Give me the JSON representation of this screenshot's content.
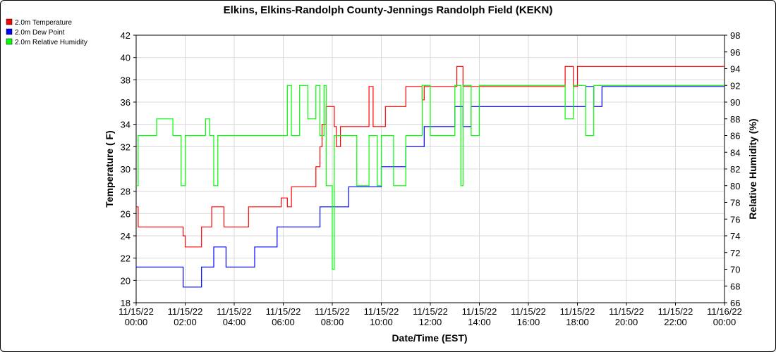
{
  "chart_data": {
    "type": "line",
    "title": "Elkins, Elkins-Randolph County-Jennings Randolph Field (KEKN)",
    "xlabel": "Date/Time (EST)",
    "ylabel_left": "Temperature ( F)",
    "ylabel_right": "Relative Humidity (%)",
    "x_ticks": [
      {
        "date": "11/15/22",
        "time": "00:00"
      },
      {
        "date": "11/15/22",
        "time": "02:00"
      },
      {
        "date": "11/15/22",
        "time": "04:00"
      },
      {
        "date": "11/15/22",
        "time": "06:00"
      },
      {
        "date": "11/15/22",
        "time": "08:00"
      },
      {
        "date": "11/15/22",
        "time": "10:00"
      },
      {
        "date": "11/15/22",
        "time": "12:00"
      },
      {
        "date": "11/15/22",
        "time": "14:00"
      },
      {
        "date": "11/15/22",
        "time": "16:00"
      },
      {
        "date": "11/15/22",
        "time": "18:00"
      },
      {
        "date": "11/15/22",
        "time": "20:00"
      },
      {
        "date": "11/15/22",
        "time": "22:00"
      },
      {
        "date": "11/16/22",
        "time": "00:00"
      }
    ],
    "xlim": [
      "11/15/22 00:00",
      "11/16/22 00:00"
    ],
    "ylim_left": [
      18,
      42
    ],
    "y_ticks_left": [
      18,
      20,
      22,
      24,
      26,
      28,
      30,
      32,
      34,
      36,
      38,
      40,
      42
    ],
    "ylim_right": [
      66,
      98
    ],
    "y_ticks_right": [
      66,
      68,
      70,
      72,
      74,
      76,
      78,
      80,
      82,
      84,
      86,
      88,
      90,
      92,
      94,
      96,
      98
    ],
    "grid": true,
    "legend_position": "top-left",
    "series": [
      {
        "name": "2.0m Temperature",
        "axis": "left",
        "color": "#ff0000",
        "x": [
          "11/15/22 00:00",
          "11/15/22 00:05",
          "11/15/22 01:45",
          "11/15/22 01:55",
          "11/15/22 02:00",
          "11/15/22 02:40",
          "11/15/22 02:55",
          "11/15/22 03:05",
          "11/15/22 03:30",
          "11/15/22 03:35",
          "11/15/22 04:00",
          "11/15/22 04:30",
          "11/15/22 04:35",
          "11/15/22 04:40",
          "11/15/22 04:50",
          "11/15/22 05:00",
          "11/15/22 05:30",
          "11/15/22 05:55",
          "11/15/22 06:10",
          "11/15/22 06:20",
          "11/15/22 06:30",
          "11/15/22 06:40",
          "11/15/22 07:10",
          "11/15/22 07:20",
          "11/15/22 07:30",
          "11/15/22 07:35",
          "11/15/22 07:45",
          "11/15/22 07:50",
          "11/15/22 08:05",
          "11/15/22 08:10",
          "11/15/22 08:20",
          "11/15/22 08:30",
          "11/15/22 08:40",
          "11/15/22 08:55",
          "11/15/22 09:10",
          "11/15/22 09:30",
          "11/15/22 09:40",
          "11/15/22 09:50",
          "11/15/22 10:00",
          "11/15/22 10:10",
          "11/15/22 10:20",
          "11/15/22 10:40",
          "11/15/22 11:00",
          "11/15/22 11:30",
          "11/15/22 11:40",
          "11/15/22 11:45",
          "11/15/22 11:55",
          "11/15/22 12:30",
          "11/15/22 13:00",
          "11/15/22 13:05",
          "11/15/22 13:20",
          "11/15/22 13:40",
          "11/15/22 14:00",
          "11/15/22 15:00",
          "11/15/22 16:00",
          "11/15/22 17:00",
          "11/15/22 17:30",
          "11/15/22 17:50",
          "11/15/22 18:00",
          "11/15/22 18:20",
          "11/15/22 19:00",
          "11/15/22 19:40",
          "11/15/22 20:00",
          "11/15/22 20:30",
          "11/15/22 21:00",
          "11/15/22 21:30",
          "11/15/22 22:00",
          "11/15/22 22:30",
          "11/15/22 23:00",
          "11/15/22 23:30",
          "11/15/22 23:55"
        ],
        "values": [
          26.6,
          24.8,
          24.8,
          24.0,
          23.0,
          24.8,
          24.8,
          26.6,
          26.6,
          24.8,
          24.8,
          24.8,
          26.6,
          26.6,
          26.6,
          26.6,
          26.6,
          27.4,
          26.6,
          28.4,
          28.4,
          28.4,
          28.4,
          30.2,
          32.0,
          34.0,
          35.6,
          35.6,
          33.8,
          32.0,
          33.8,
          33.8,
          33.8,
          33.8,
          33.8,
          37.4,
          33.8,
          33.8,
          33.8,
          35.6,
          35.6,
          35.6,
          37.4,
          37.4,
          36.2,
          37.4,
          37.4,
          37.4,
          37.4,
          39.2,
          37.4,
          37.4,
          37.4,
          37.4,
          37.4,
          37.4,
          39.2,
          37.4,
          39.2,
          39.2,
          39.2,
          39.2,
          39.2,
          39.2,
          39.2,
          39.2,
          39.2,
          39.2,
          39.2,
          39.2,
          39.2
        ]
      },
      {
        "name": "2.0m Dew Point",
        "axis": "left",
        "color": "#0000ff",
        "x": [
          "11/15/22 00:00",
          "11/15/22 01:00",
          "11/15/22 01:45",
          "11/15/22 01:55",
          "11/15/22 02:05",
          "11/15/22 02:40",
          "11/15/22 03:00",
          "11/15/22 03:10",
          "11/15/22 03:20",
          "11/15/22 03:40",
          "11/15/22 03:50",
          "11/15/22 04:20",
          "11/15/22 04:40",
          "11/15/22 04:50",
          "11/15/22 05:00",
          "11/15/22 05:30",
          "11/15/22 05:45",
          "11/15/22 06:00",
          "11/15/22 06:20",
          "11/15/22 06:40",
          "11/15/22 07:00",
          "11/15/22 07:20",
          "11/15/22 07:30",
          "11/15/22 07:50",
          "11/15/22 08:05",
          "11/15/22 08:40",
          "11/15/22 09:00",
          "11/15/22 09:40",
          "11/15/22 09:50",
          "11/15/22 10:00",
          "11/15/22 10:20",
          "11/15/22 10:40",
          "11/15/22 11:00",
          "11/15/22 11:30",
          "11/15/22 11:45",
          "11/15/22 12:00",
          "11/15/22 12:30",
          "11/15/22 13:00",
          "11/15/22 13:20",
          "11/15/22 13:40",
          "11/15/22 14:00",
          "11/15/22 15:00",
          "11/15/22 16:00",
          "11/15/22 17:00",
          "11/15/22 17:50",
          "11/15/22 18:00",
          "11/15/22 18:20",
          "11/15/22 18:40",
          "11/15/22 19:00",
          "11/15/22 20:00",
          "11/15/22 21:00",
          "11/15/22 22:00",
          "11/15/22 23:00",
          "11/15/22 23:55"
        ],
        "values": [
          21.2,
          21.2,
          21.2,
          19.4,
          19.4,
          21.2,
          21.2,
          23.0,
          23.0,
          21.2,
          21.2,
          21.2,
          21.2,
          23.0,
          23.0,
          23.0,
          24.8,
          24.8,
          24.8,
          24.8,
          24.8,
          24.8,
          26.6,
          26.6,
          26.6,
          28.4,
          28.4,
          28.4,
          28.4,
          30.2,
          30.2,
          30.2,
          32.0,
          32.0,
          33.8,
          33.8,
          33.8,
          35.6,
          33.8,
          35.6,
          35.6,
          35.6,
          35.6,
          35.6,
          35.6,
          35.6,
          37.4,
          35.6,
          37.4,
          37.4,
          37.4,
          37.4,
          37.4,
          37.4
        ]
      },
      {
        "name": "2.0m Relative Humidity",
        "axis": "right",
        "color": "#00ff00",
        "x": [
          "11/15/22 00:00",
          "11/15/22 00:05",
          "11/15/22 00:45",
          "11/15/22 00:50",
          "11/15/22 01:30",
          "11/15/22 01:35",
          "11/15/22 01:50",
          "11/15/22 02:00",
          "11/15/22 02:40",
          "11/15/22 02:50",
          "11/15/22 03:00",
          "11/15/22 03:10",
          "11/15/22 03:20",
          "11/15/22 03:40",
          "11/15/22 04:00",
          "11/15/22 04:30",
          "11/15/22 04:40",
          "11/15/22 05:00",
          "11/15/22 05:30",
          "11/15/22 05:35",
          "11/15/22 06:00",
          "11/15/22 06:10",
          "11/15/22 06:20",
          "11/15/22 06:40",
          "11/15/22 07:00",
          "11/15/22 07:20",
          "11/15/22 07:30",
          "11/15/22 07:40",
          "11/15/22 07:45",
          "11/15/22 08:00",
          "11/15/22 08:05",
          "11/15/22 08:20",
          "11/15/22 08:30",
          "11/15/22 09:00",
          "11/15/22 09:30",
          "11/15/22 09:50",
          "11/15/22 10:00",
          "11/15/22 10:15",
          "11/15/22 10:30",
          "11/15/22 11:00",
          "11/15/22 11:30",
          "11/15/22 11:40",
          "11/15/22 12:00",
          "11/15/22 12:20",
          "11/15/22 12:40",
          "11/15/22 13:00",
          "11/15/22 13:15",
          "11/15/22 13:20",
          "11/15/22 13:40",
          "11/15/22 14:00",
          "11/15/22 15:00",
          "11/15/22 16:00",
          "11/15/22 17:00",
          "11/15/22 17:30",
          "11/15/22 17:50",
          "11/15/22 18:00",
          "11/15/22 18:20",
          "11/15/22 18:40",
          "11/15/22 19:00",
          "11/15/22 19:40",
          "11/15/22 20:00",
          "11/15/22 20:30",
          "11/15/22 21:00",
          "11/15/22 22:00",
          "11/15/22 23:00",
          "11/15/22 23:55"
        ],
        "values": [
          80,
          86,
          86,
          88,
          86,
          86,
          80,
          86,
          86,
          88,
          86,
          80,
          86,
          86,
          86,
          86,
          86,
          86,
          86,
          86,
          86,
          92,
          86,
          92,
          88,
          92,
          86,
          92,
          80,
          70,
          86,
          86,
          86,
          80,
          86,
          80,
          86,
          86,
          80,
          86,
          86,
          92,
          86,
          86,
          86,
          92,
          80,
          92,
          86,
          92,
          92,
          92,
          92,
          88,
          92,
          92,
          86,
          92,
          92,
          92,
          92,
          92,
          92,
          92,
          92,
          92
        ]
      }
    ]
  }
}
